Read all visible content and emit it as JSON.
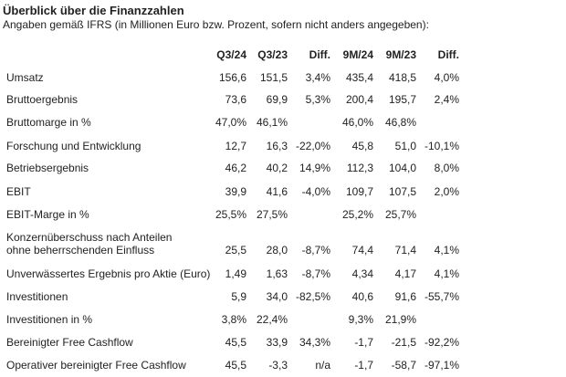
{
  "title": "Überblick über die Finanzzahlen",
  "subtitle": "Angaben gemäß IFRS (in Millionen Euro bzw. Prozent, sofern nicht anders angegeben):",
  "columns": [
    "Q3/24",
    "Q3/23",
    "Diff.",
    "9M/24",
    "9M/23",
    "Diff."
  ],
  "rows": [
    {
      "label": "Umsatz",
      "values": [
        "156,6",
        "151,5",
        "3,4%",
        "435,4",
        "418,5",
        "4,0%"
      ]
    },
    {
      "label": "Bruttoergebnis",
      "values": [
        "73,6",
        "69,9",
        "5,3%",
        "200,4",
        "195,7",
        "2,4%"
      ]
    },
    {
      "label": "Bruttomarge in %",
      "values": [
        "47,0%",
        "46,1%",
        "",
        "46,0%",
        "46,8%",
        ""
      ]
    },
    {
      "label": "Forschung und Entwicklung",
      "values": [
        "12,7",
        "16,3",
        "-22,0%",
        "45,8",
        "51,0",
        "-10,1%"
      ]
    },
    {
      "label": "Betriebsergebnis",
      "values": [
        "46,2",
        "40,2",
        "14,9%",
        "112,3",
        "104,0",
        "8,0%"
      ]
    },
    {
      "label": "EBIT",
      "values": [
        "39,9",
        "41,6",
        "-4,0%",
        "109,7",
        "107,5",
        "2,0%"
      ]
    },
    {
      "label": "EBIT-Marge in %",
      "values": [
        "25,5%",
        "27,5%",
        "",
        "25,2%",
        "25,7%",
        ""
      ]
    },
    {
      "label": "Konzernüberschuss nach Anteilen",
      "label2": "ohne beherrschenden Einfluss",
      "values": [
        "25,5",
        "28,0",
        "-8,7%",
        "74,4",
        "71,4",
        "4,1%"
      ]
    },
    {
      "label": "Unverwässertes Ergebnis pro Aktie (Euro)",
      "values": [
        "1,49",
        "1,63",
        "-8,7%",
        "4,34",
        "4,17",
        "4,1%"
      ]
    },
    {
      "label": "Investitionen",
      "values": [
        "5,9",
        "34,0",
        "-82,5%",
        "40,6",
        "91,6",
        "-55,7%"
      ]
    },
    {
      "label": "Investitionen in %",
      "values": [
        "3,8%",
        "22,4%",
        "",
        "9,3%",
        "21,9%",
        ""
      ]
    },
    {
      "label": "Bereinigter Free Cashflow",
      "values": [
        "45,5",
        "33,9",
        "34,3%",
        "-1,7",
        "-21,5",
        "-92,2%"
      ]
    },
    {
      "label": "Operativer bereinigter Free Cashflow",
      "values": [
        "45,5",
        "-3,3",
        "n/a",
        "-1,7",
        "-58,7",
        "-97,1%"
      ]
    }
  ]
}
